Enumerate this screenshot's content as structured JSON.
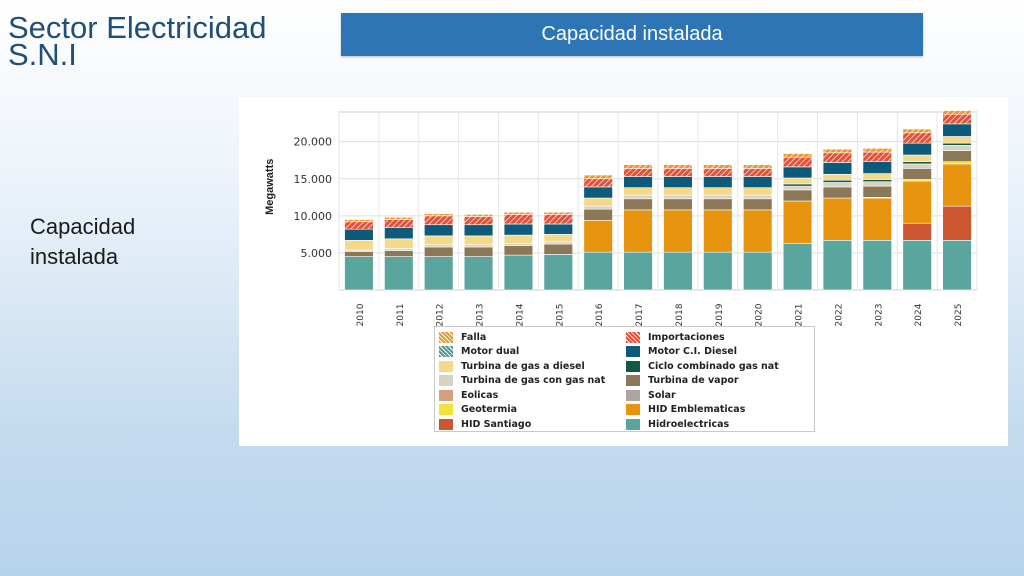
{
  "slide": {
    "title": "Sector Electricidad S.N.I",
    "header": "Capacidad instalada",
    "side_label": "Capacidad instalada"
  },
  "chart_data": {
    "type": "bar",
    "stacked": true,
    "title": "",
    "xlabel": "",
    "ylabel": "Megawatts",
    "ylim": [
      0,
      24000
    ],
    "yticks": [
      5000,
      10000,
      15000,
      20000
    ],
    "ytick_labels": [
      "5.000",
      "10.000",
      "15.000",
      "20.000"
    ],
    "grid": true,
    "categories": [
      "2010",
      "2011",
      "2012",
      "2013",
      "2014",
      "2015",
      "2016",
      "2017",
      "2018",
      "2019",
      "2020",
      "2021",
      "2022",
      "2023",
      "2024",
      "2025"
    ],
    "series": [
      {
        "name": "Hidroelectricas",
        "color": "#5aa59e",
        "pattern": "solid",
        "values": [
          4500,
          4500,
          4500,
          4500,
          4700,
          4800,
          5100,
          5100,
          5100,
          5100,
          5100,
          6300,
          6700,
          6700,
          6700,
          6700
        ]
      },
      {
        "name": "HID Santiago",
        "color": "#cc5630",
        "pattern": "solid",
        "values": [
          0,
          0,
          0,
          0,
          0,
          0,
          0,
          0,
          0,
          0,
          0,
          0,
          0,
          0,
          2300,
          4600
        ]
      },
      {
        "name": "HID Emblematicas",
        "color": "#e7950f",
        "pattern": "solid",
        "values": [
          0,
          0,
          0,
          0,
          0,
          0,
          4300,
          5700,
          5700,
          5700,
          5700,
          5700,
          5700,
          5700,
          5700,
          5700
        ]
      },
      {
        "name": "Geotermia",
        "color": "#f2e23a",
        "pattern": "solid",
        "values": [
          0,
          0,
          0,
          0,
          0,
          0,
          0,
          0,
          0,
          0,
          0,
          0,
          0,
          100,
          200,
          300
        ]
      },
      {
        "name": "Solar",
        "color": "#b0a4a2",
        "pattern": "solid",
        "values": [
          0,
          0,
          0,
          0,
          0,
          0,
          0,
          0,
          0,
          0,
          0,
          0,
          0,
          0,
          0,
          0
        ]
      },
      {
        "name": "Eolicas",
        "color": "#d4a080",
        "pattern": "solid",
        "values": [
          0,
          0,
          0,
          0,
          0,
          0,
          0,
          0,
          0,
          0,
          0,
          0,
          0,
          0,
          0,
          0
        ]
      },
      {
        "name": "Turbina de vapor",
        "color": "#8b7858",
        "pattern": "solid",
        "values": [
          700,
          800,
          1300,
          1300,
          1300,
          1400,
          1500,
          1500,
          1500,
          1500,
          1500,
          1500,
          1500,
          1500,
          1500,
          1500
        ]
      },
      {
        "name": "Turbina de gas con gas nat",
        "color": "#d8d2c0",
        "pattern": "solid",
        "values": [
          200,
          300,
          300,
          300,
          300,
          300,
          400,
          500,
          500,
          500,
          500,
          500,
          600,
          600,
          600,
          700
        ]
      },
      {
        "name": "Ciclo combinado gas nat",
        "color": "#0e5948",
        "pattern": "solid",
        "values": [
          0,
          0,
          0,
          0,
          0,
          0,
          0,
          0,
          0,
          0,
          0,
          300,
          300,
          300,
          300,
          300
        ]
      },
      {
        "name": "Turbina de gas a diesel",
        "color": "#f5d98b",
        "pattern": "solid",
        "values": [
          1300,
          1300,
          1200,
          1200,
          1100,
          1000,
          1100,
          1000,
          1000,
          1000,
          1000,
          800,
          800,
          800,
          900,
          900
        ]
      },
      {
        "name": "Motor C.I. Diesel",
        "color": "#0e5a7a",
        "pattern": "solid",
        "values": [
          1500,
          1500,
          1500,
          1500,
          1500,
          1400,
          1500,
          1500,
          1500,
          1500,
          1500,
          1500,
          1600,
          1600,
          1600,
          1700
        ]
      },
      {
        "name": "Motor dual",
        "color": "#4f9a98",
        "pattern": "hatch",
        "values": [
          0,
          0,
          0,
          0,
          0,
          0,
          0,
          0,
          0,
          0,
          0,
          0,
          0,
          0,
          0,
          0
        ]
      },
      {
        "name": "Importaciones",
        "color": "#e2523a",
        "pattern": "hatch",
        "values": [
          1000,
          1100,
          1200,
          1100,
          1300,
          1300,
          1100,
          1100,
          1100,
          1100,
          1100,
          1300,
          1300,
          1300,
          1400,
          1300
        ]
      },
      {
        "name": "Falla",
        "color": "#e79a2a",
        "pattern": "hatch",
        "values": [
          300,
          300,
          300,
          300,
          300,
          300,
          500,
          500,
          500,
          500,
          500,
          500,
          500,
          500,
          500,
          500
        ]
      }
    ],
    "legend_order": [
      "Falla",
      "Importaciones",
      "Motor dual",
      "Motor C.I. Diesel",
      "Turbina de gas a diesel",
      "Ciclo combinado gas nat",
      "Turbina de gas con gas nat",
      "Turbina de vapor",
      "Eolicas",
      "Solar",
      "Geotermia",
      "HID Emblematicas",
      "HID Santiago",
      "Hidroelectricas"
    ],
    "legend_placement": "bottom"
  }
}
